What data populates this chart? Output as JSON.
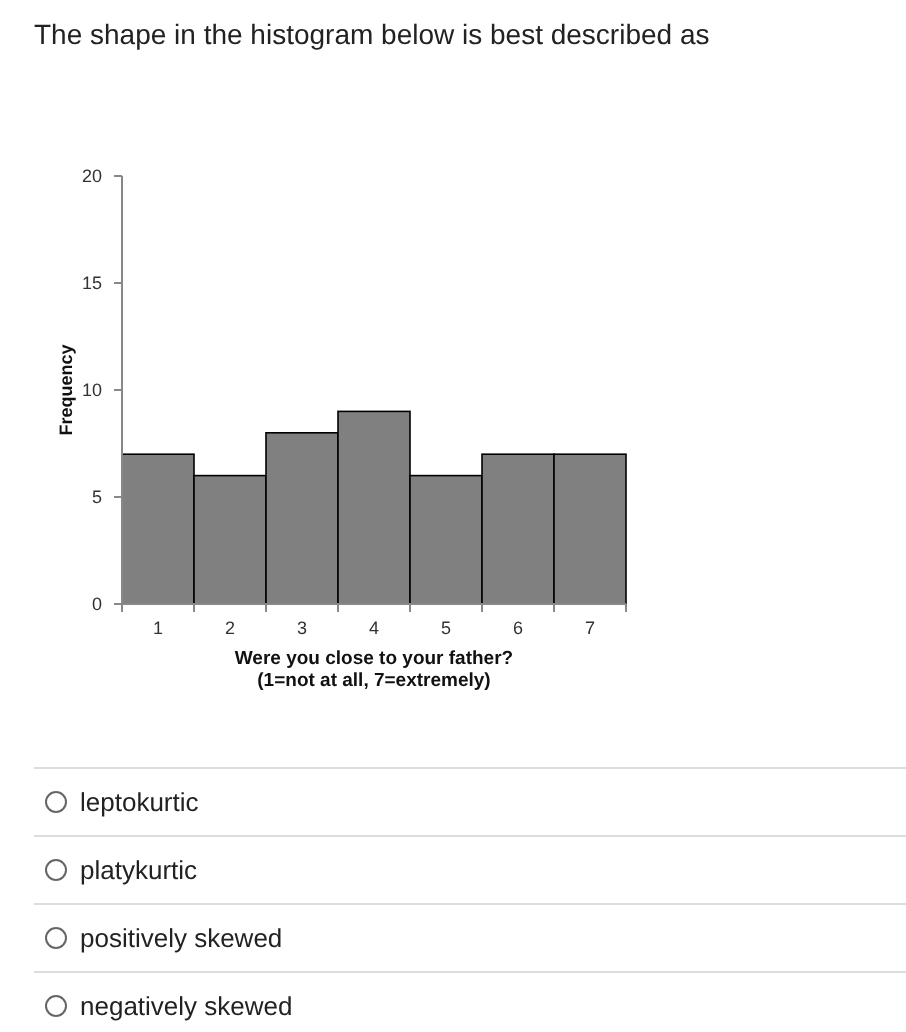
{
  "chart_data": {
    "type": "bar",
    "title": "The shape in the histogram below is best described as",
    "categories": [
      "1",
      "2",
      "3",
      "4",
      "5",
      "6",
      "7"
    ],
    "values": [
      7,
      6,
      8,
      9,
      6,
      7,
      7
    ],
    "color": "#808080",
    "ylim": [
      0,
      20
    ],
    "yticks": [
      0,
      5,
      10,
      15,
      20
    ],
    "grid": false,
    "xlabel": "Were you close to your father?\n(1=not at all, 7=extremely)",
    "ylabel": "Frequency",
    "annotations": [
      "leptokurtic",
      "platykurtic",
      "positively skewed",
      "negatively skewed"
    ]
  }
}
